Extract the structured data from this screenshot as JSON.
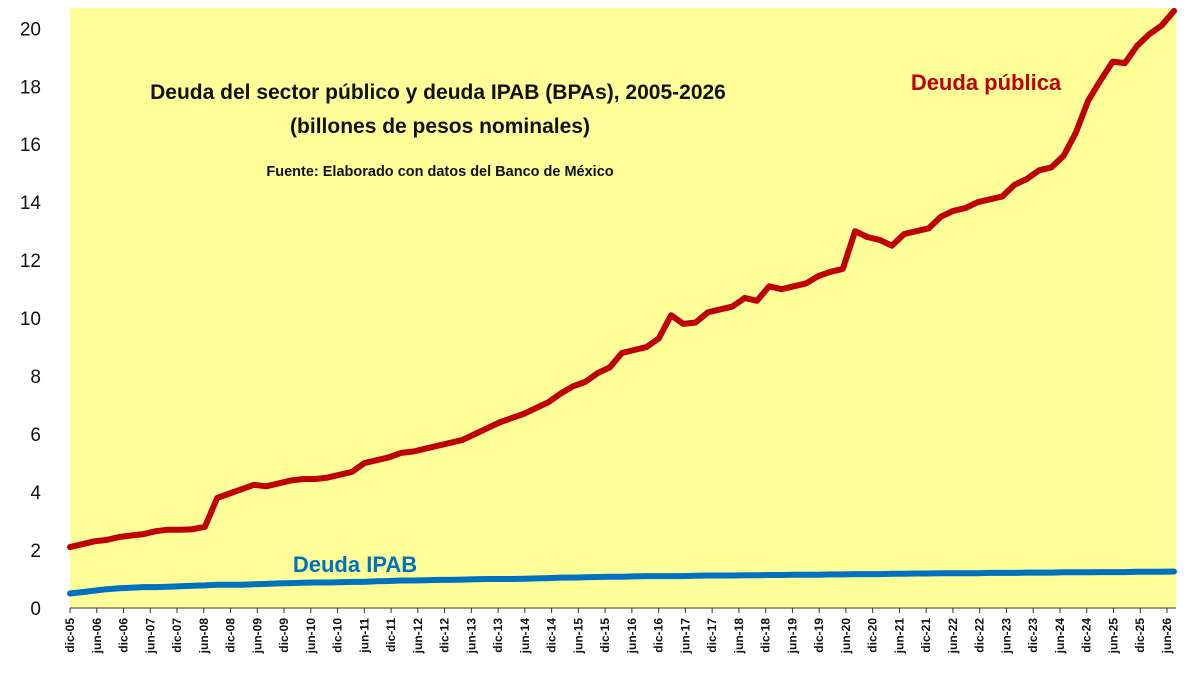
{
  "chart_data": {
    "type": "line",
    "title": "Deuda del sector público y deuda IPAB (BPAs), 2005-2026",
    "subtitle": "(billones de pesos nominales)",
    "source": "Fuente: Elaborado con datos del Banco de México",
    "xlabel": "",
    "ylabel": "",
    "ylim": [
      0,
      20.7
    ],
    "y_ticks": [
      0,
      2,
      4,
      6,
      8,
      10,
      12,
      14,
      16,
      18,
      20
    ],
    "x_tick_labels": [
      "dic-05",
      "jun-06",
      "dic-06",
      "jun-07",
      "dic-07",
      "jun-08",
      "dic-08",
      "jun-09",
      "dic-09",
      "jun-10",
      "dic-10",
      "jun-11",
      "dic-11",
      "jun-12",
      "dic-12",
      "jun-13",
      "dic-13",
      "jun-14",
      "dic-14",
      "jun-15",
      "dic-15",
      "jun-16",
      "dic-16",
      "jun-17",
      "dic-17",
      "jun-18",
      "dic-18",
      "jun-19",
      "dic-19",
      "jun-20",
      "dic-20",
      "jun-21",
      "dic-21",
      "jun-22",
      "dic-22",
      "jun-23",
      "dic-23",
      "jun-24",
      "dic-24",
      "jun-25",
      "dic-25",
      "jun-26"
    ],
    "grid": false,
    "legend": "none",
    "plot_background": "#ffff99",
    "series": [
      {
        "name": "Deuda pública",
        "color": "#c00000",
        "values": [
          2.1,
          2.2,
          2.3,
          2.35,
          2.45,
          2.5,
          2.55,
          2.65,
          2.7,
          2.7,
          2.72,
          2.8,
          3.8,
          3.95,
          4.1,
          4.25,
          4.2,
          4.3,
          4.4,
          4.45,
          4.45,
          4.5,
          4.6,
          4.7,
          5.0,
          5.1,
          5.2,
          5.35,
          5.4,
          5.5,
          5.6,
          5.7,
          5.8,
          6.0,
          6.2,
          6.4,
          6.55,
          6.7,
          6.9,
          7.1,
          7.4,
          7.65,
          7.8,
          8.1,
          8.3,
          8.8,
          8.9,
          9.0,
          9.3,
          10.1,
          9.8,
          9.85,
          10.2,
          10.3,
          10.4,
          10.7,
          10.6,
          11.1,
          11.0,
          11.1,
          11.2,
          11.45,
          11.6,
          11.7,
          13.0,
          12.8,
          12.7,
          12.5,
          12.9,
          13.0,
          13.1,
          13.5,
          13.7,
          13.8,
          14.0,
          14.1,
          14.2,
          14.6,
          14.8,
          15.1,
          15.2,
          15.6,
          16.4,
          17.5,
          18.2,
          18.85,
          18.8,
          19.4,
          19.8,
          20.1,
          20.6
        ]
      },
      {
        "name": "Deuda IPAB",
        "color": "#0070c0",
        "values": [
          0.5,
          0.55,
          0.6,
          0.65,
          0.68,
          0.7,
          0.72,
          0.72,
          0.73,
          0.75,
          0.77,
          0.78,
          0.8,
          0.8,
          0.8,
          0.82,
          0.83,
          0.85,
          0.86,
          0.87,
          0.88,
          0.88,
          0.89,
          0.9,
          0.9,
          0.92,
          0.93,
          0.95,
          0.95,
          0.96,
          0.97,
          0.97,
          0.98,
          0.99,
          1.0,
          1.0,
          1.0,
          1.01,
          1.02,
          1.03,
          1.05,
          1.05,
          1.06,
          1.07,
          1.08,
          1.08,
          1.09,
          1.1,
          1.1,
          1.1,
          1.1,
          1.11,
          1.12,
          1.12,
          1.12,
          1.13,
          1.13,
          1.14,
          1.14,
          1.15,
          1.15,
          1.15,
          1.16,
          1.16,
          1.17,
          1.17,
          1.17,
          1.18,
          1.18,
          1.19,
          1.19,
          1.2,
          1.2,
          1.2,
          1.2,
          1.21,
          1.21,
          1.21,
          1.22,
          1.22,
          1.22,
          1.23,
          1.23,
          1.23,
          1.24,
          1.24,
          1.24,
          1.25,
          1.25,
          1.25,
          1.26
        ]
      }
    ]
  }
}
